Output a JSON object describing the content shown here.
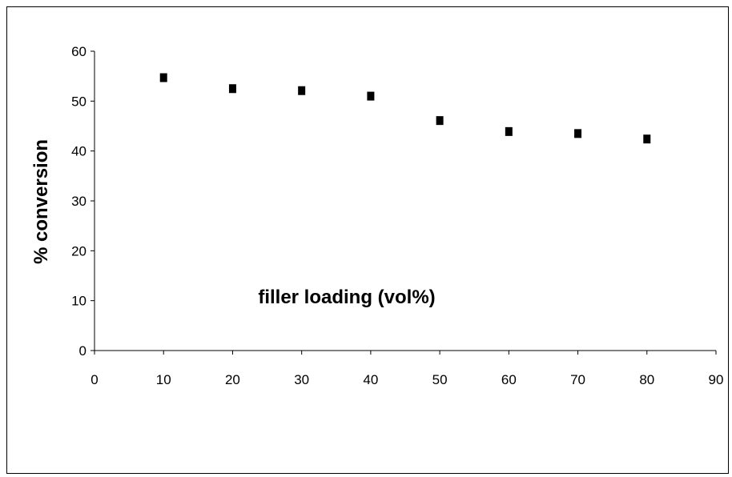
{
  "chart_data": {
    "type": "scatter",
    "title": "",
    "xlabel": "filler loading (vol%)",
    "ylabel": "% conversion",
    "xlim": [
      0,
      90
    ],
    "ylim": [
      0,
      60
    ],
    "x_ticks": [
      0,
      10,
      20,
      30,
      40,
      50,
      60,
      70,
      80,
      90
    ],
    "y_ticks": [
      0,
      10,
      20,
      30,
      40,
      50,
      60
    ],
    "grid": false,
    "legend": "none",
    "marker": "square",
    "marker_color": "#000000",
    "series": [
      {
        "x": [
          10,
          20,
          30,
          40,
          50,
          60,
          70,
          80
        ],
        "y": [
          54.7,
          52.5,
          52.1,
          51.0,
          46.1,
          43.9,
          43.5,
          42.4
        ]
      }
    ]
  }
}
